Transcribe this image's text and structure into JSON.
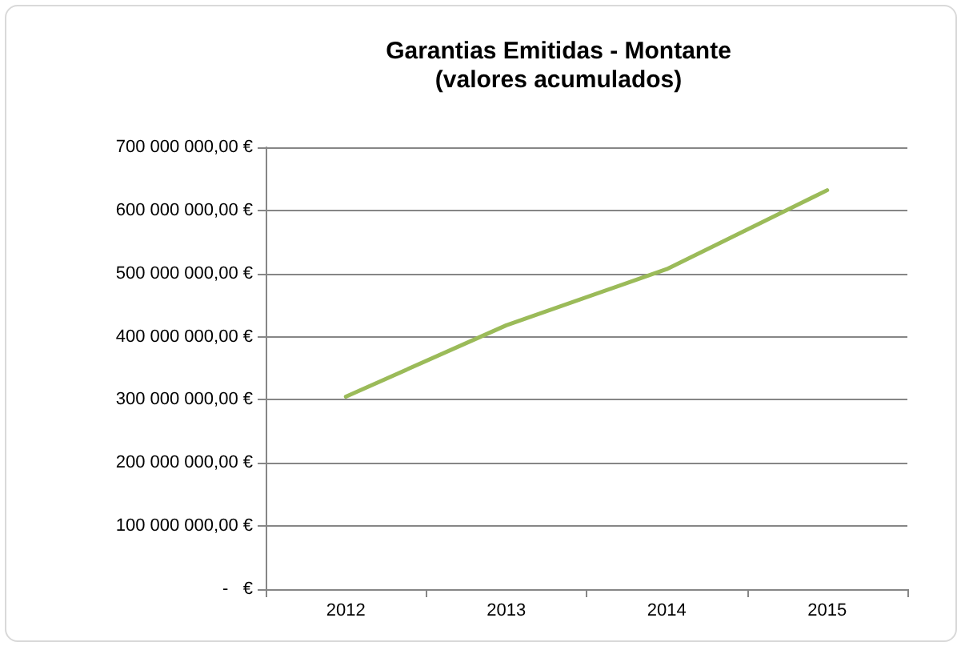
{
  "chart_data": {
    "type": "line",
    "title": "Garantias Emitidas - Montante\n(valores acumulados)",
    "categories": [
      "2012",
      "2013",
      "2014",
      "2015"
    ],
    "series": [
      {
        "color": "#9bbb59",
        "values": [
          305000000,
          418000000,
          507000000,
          632000000
        ]
      }
    ],
    "ylim": [
      0,
      700000000
    ],
    "yticks": [
      {
        "value": 0,
        "label": "-   €"
      },
      {
        "value": 100000000,
        "label": "100 000 000,00 €"
      },
      {
        "value": 200000000,
        "label": "200 000 000,00 €"
      },
      {
        "value": 300000000,
        "label": "300 000 000,00 €"
      },
      {
        "value": 400000000,
        "label": "400 000 000,00 €"
      },
      {
        "value": 500000000,
        "label": "500 000 000,00 €"
      },
      {
        "value": 600000000,
        "label": "600 000 000,00 €"
      },
      {
        "value": 700000000,
        "label": "700 000 000,00 €"
      }
    ],
    "grid": "y",
    "marker": "none",
    "line_style": "solid"
  }
}
